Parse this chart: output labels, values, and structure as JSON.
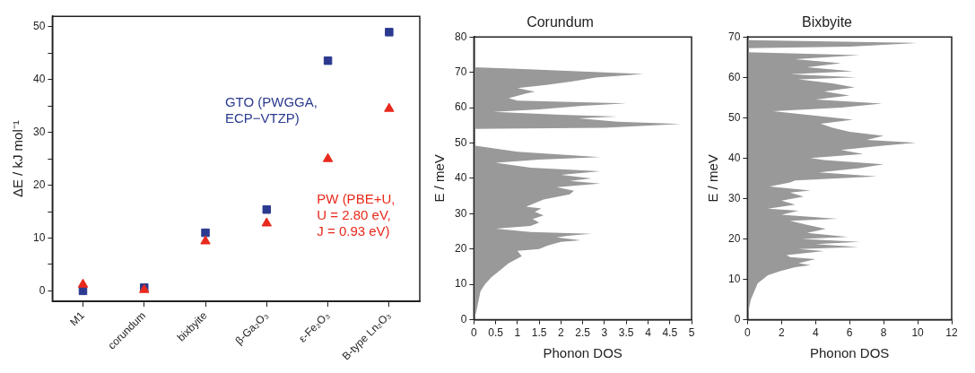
{
  "chart_data": [
    {
      "type": "scatter",
      "ylabel": "ΔE / kJ mol⁻¹",
      "categories": [
        "M1",
        "corundum",
        "bixbyite",
        "β-Ga₂O₃",
        "ε-Fe₂O₃",
        "B-type Ln₂O₃"
      ],
      "series": [
        {
          "name": "GTO (PWGGA, ECP−VTZP)",
          "color": "#2b3a8f",
          "marker": "square",
          "values": [
            0,
            0.6,
            11,
            15.4,
            43.6,
            49
          ]
        },
        {
          "name": "PW (PBE+U, U = 2.80 eV, J = 0.93 eV)",
          "color": "#e8291c",
          "marker": "triangle",
          "values": [
            1.2,
            0.2,
            9.4,
            12.8,
            25,
            34.5
          ]
        }
      ],
      "ylim": [
        -2,
        52
      ],
      "yticks": [
        0,
        {
          "value": 5,
          "label": null
        },
        10,
        {
          "value": 15,
          "label": null
        },
        20,
        {
          "value": 25,
          "label": null
        },
        30,
        {
          "value": 35,
          "label": null
        },
        40,
        {
          "value": 45,
          "label": null
        },
        50
      ],
      "grid": false,
      "legend": false
    },
    {
      "type": "area",
      "orientation": "horizontal",
      "title": "Corundum",
      "xlabel": "Phonon DOS",
      "ylabel": "E / meV",
      "color": "#999999",
      "x": [
        0,
        2,
        5,
        8,
        10,
        12,
        14,
        16,
        18,
        19.5,
        20,
        21,
        22,
        22.5,
        23.3,
        23.8,
        24.3,
        24.8,
        25.8,
        26.5,
        27.5,
        28.5,
        29.5,
        30.5,
        31.5,
        32,
        34,
        35.5,
        36.5,
        37.5,
        38.5,
        39.3,
        40,
        41,
        42,
        43,
        44.4,
        45.3,
        46,
        47.5,
        49.3,
        54,
        54.3,
        55.4,
        56,
        57,
        57.5,
        58,
        58.8,
        59.5,
        60.5,
        61.2,
        62,
        62.7,
        64,
        64.5,
        65.5,
        66.5,
        67.5,
        68.5,
        69.5,
        70.2,
        71,
        71.4,
        80
      ],
      "values": [
        0,
        0.05,
        0.1,
        0.15,
        0.25,
        0.4,
        0.6,
        0.8,
        1.1,
        1,
        1.5,
        1.7,
        2,
        2.45,
        1.9,
        2.2,
        2.7,
        1.3,
        0.5,
        1.3,
        1.5,
        1.35,
        1.6,
        1.4,
        1.55,
        1.2,
        1.6,
        2.2,
        2.3,
        1.9,
        2.9,
        2.2,
        2.7,
        2,
        2.9,
        1.3,
        0.5,
        1.5,
        2.9,
        1,
        0,
        0,
        3,
        4.75,
        3.3,
        2.4,
        3.3,
        2,
        0.45,
        1.5,
        2.5,
        3.5,
        1,
        0.8,
        1.2,
        1.4,
        1,
        1.7,
        2.3,
        2.8,
        3.9,
        2.5,
        1,
        0,
        0
      ],
      "xlim": [
        0,
        5
      ],
      "xticks": [
        0,
        0.5,
        1,
        1.5,
        2,
        2.5,
        3,
        3.5,
        4,
        4.5,
        5
      ],
      "ylim": [
        0,
        80
      ],
      "yticks": [
        0,
        10,
        20,
        30,
        40,
        50,
        60,
        70,
        80
      ],
      "grid": false,
      "legend": false
    },
    {
      "type": "area",
      "orientation": "horizontal",
      "title": "Bixbyite",
      "xlabel": "Phonon DOS",
      "ylabel": "E / meV",
      "color": "#999999",
      "x": [
        0,
        3,
        5,
        7,
        9,
        10,
        11,
        12,
        13,
        13.5,
        14,
        15,
        15.5,
        16,
        17,
        17.5,
        18,
        18.7,
        19.3,
        20,
        20.5,
        21.5,
        22.5,
        23.5,
        24.5,
        25,
        26,
        27,
        27.5,
        28.5,
        29.5,
        30.5,
        31.5,
        32,
        33,
        34,
        34.5,
        35.5,
        36.5,
        37.5,
        38.5,
        39.5,
        40,
        41,
        42,
        43,
        43.8,
        44.5,
        45.5,
        46.5,
        47.5,
        48.5,
        49.5,
        50.5,
        51.6,
        52.5,
        53.5,
        54.5,
        55.5,
        56.5,
        57.5,
        58.5,
        59.5,
        60,
        60.8,
        61.5,
        62.5,
        63.5,
        64.5,
        65.5,
        66.2,
        67.2,
        67.6,
        68.5,
        69.2,
        70
      ],
      "values": [
        0,
        0.1,
        0.2,
        0.4,
        0.6,
        0.9,
        1.2,
        1.9,
        2.8,
        3.7,
        3,
        4,
        2.5,
        2.3,
        4.5,
        3,
        6.5,
        4,
        6.6,
        3.2,
        5.9,
        3.5,
        4.6,
        3.5,
        2.5,
        5.3,
        2,
        3,
        1.2,
        2.8,
        2,
        3.3,
        2.5,
        3.7,
        1.3,
        2.5,
        2.8,
        7.6,
        4.2,
        6.5,
        8,
        4.5,
        3.7,
        6.8,
        5.5,
        7.8,
        9.9,
        7,
        8,
        6,
        5,
        4.3,
        6.2,
        4,
        1.5,
        5.5,
        7.9,
        4,
        6,
        4.5,
        6.3,
        5,
        3,
        6.4,
        2.5,
        6.2,
        3.5,
        5.5,
        2.8,
        6.6,
        0,
        0,
        6,
        10,
        0,
        0
      ],
      "xlim": [
        0,
        12
      ],
      "xticks": [
        0,
        2,
        4,
        6,
        8,
        10,
        12
      ],
      "ylim": [
        0,
        70
      ],
      "yticks": [
        0,
        10,
        20,
        30,
        40,
        50,
        60,
        70
      ],
      "grid": false,
      "legend": false
    }
  ]
}
